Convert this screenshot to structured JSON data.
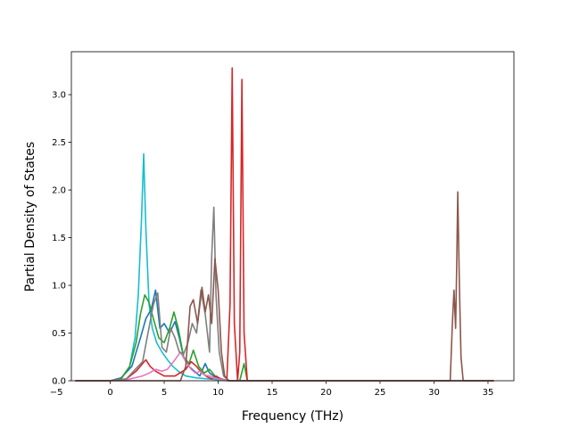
{
  "chart_data": {
    "type": "line",
    "title": "",
    "xlabel": "Frequency (THz)",
    "ylabel": "Partial Density of States",
    "xlim": [
      -3.6,
      37.4
    ],
    "ylim": [
      0.0,
      3.45
    ],
    "xticks": [
      -5,
      0,
      5,
      10,
      15,
      20,
      25,
      30,
      35
    ],
    "yticks": [
      0.0,
      0.5,
      1.0,
      1.5,
      2.0,
      2.5,
      3.0
    ],
    "xtick_labels": [
      "−5",
      "0",
      "5",
      "10",
      "15",
      "20",
      "25",
      "30",
      "35"
    ],
    "ytick_labels": [
      "0.0",
      "0.5",
      "1.0",
      "1.5",
      "2.0",
      "2.5",
      "3.0"
    ],
    "grid": false,
    "legend": "none",
    "series": [
      {
        "color": "#17becf",
        "x": [
          -3.2,
          0.0,
          1.0,
          1.8,
          2.3,
          2.6,
          2.9,
          3.1,
          3.3,
          3.6,
          3.9,
          4.3,
          4.8,
          5.3,
          5.8,
          6.3,
          7.0,
          8.0,
          9.0,
          10.0,
          11.0,
          12.5,
          35.5
        ],
        "y": [
          0.0,
          0.0,
          0.02,
          0.15,
          0.45,
          0.9,
          1.7,
          2.38,
          1.6,
          0.8,
          0.55,
          0.4,
          0.3,
          0.22,
          0.15,
          0.1,
          0.05,
          0.03,
          0.02,
          0.01,
          0.0,
          0.0,
          0.0
        ]
      },
      {
        "color": "#1f77b4",
        "x": [
          -3.2,
          0.0,
          1.0,
          2.0,
          2.8,
          3.3,
          3.8,
          4.2,
          4.6,
          5.0,
          5.5,
          6.0,
          6.4,
          6.8,
          7.3,
          7.8,
          8.3,
          8.8,
          9.2,
          9.6,
          10.0,
          10.5,
          11.2,
          12.5,
          35.5
        ],
        "y": [
          0.0,
          0.0,
          0.03,
          0.15,
          0.45,
          0.65,
          0.75,
          0.95,
          0.55,
          0.6,
          0.5,
          0.62,
          0.45,
          0.25,
          0.15,
          0.1,
          0.05,
          0.18,
          0.08,
          0.05,
          0.03,
          0.01,
          0.0,
          0.0,
          0.0
        ]
      },
      {
        "color": "#2ca02c",
        "x": [
          -3.2,
          0.0,
          1.0,
          1.8,
          2.4,
          2.8,
          3.2,
          3.6,
          4.0,
          4.5,
          5.0,
          5.5,
          5.9,
          6.3,
          6.8,
          7.3,
          7.7,
          8.2,
          8.7,
          9.2,
          9.7,
          10.3,
          11.0,
          12.0,
          12.4,
          12.7,
          35.5
        ],
        "y": [
          0.0,
          0.0,
          0.02,
          0.15,
          0.4,
          0.7,
          0.9,
          0.82,
          0.65,
          0.45,
          0.4,
          0.55,
          0.72,
          0.55,
          0.25,
          0.18,
          0.32,
          0.15,
          0.08,
          0.12,
          0.05,
          0.02,
          0.0,
          0.0,
          0.18,
          0.0,
          0.0
        ]
      },
      {
        "color": "#d62728",
        "x": [
          -3.2,
          0.0,
          1.5,
          2.4,
          3.0,
          3.3,
          3.7,
          4.2,
          5.0,
          6.0,
          7.0,
          7.5,
          8.0,
          8.5,
          9.0,
          9.4,
          9.8,
          10.2,
          10.8,
          11.1,
          11.3,
          11.5,
          11.8,
          12.0,
          12.2,
          12.4,
          12.7,
          13.5,
          35.5
        ],
        "y": [
          0.0,
          0.0,
          0.02,
          0.1,
          0.18,
          0.22,
          0.15,
          0.1,
          0.05,
          0.05,
          0.12,
          0.2,
          0.15,
          0.08,
          0.04,
          0.02,
          0.05,
          0.02,
          0.0,
          0.8,
          3.28,
          0.6,
          0.0,
          0.3,
          3.16,
          0.5,
          0.0,
          0.0,
          0.0
        ]
      },
      {
        "color": "#e377c2",
        "x": [
          -3.2,
          0.0,
          1.5,
          3.0,
          3.6,
          4.2,
          4.8,
          5.3,
          6.0,
          6.5,
          7.0,
          7.5,
          7.9,
          8.3,
          8.7,
          9.2,
          9.6,
          10.0,
          10.5,
          11.0,
          35.5
        ],
        "y": [
          0.0,
          0.0,
          0.01,
          0.05,
          0.08,
          0.12,
          0.1,
          0.12,
          0.22,
          0.3,
          0.2,
          0.12,
          0.08,
          0.1,
          0.06,
          0.05,
          0.03,
          0.02,
          0.01,
          0.0,
          0.0
        ]
      },
      {
        "color": "#7f7f7f",
        "x": [
          -3.2,
          0.0,
          1.5,
          3.0,
          3.5,
          4.0,
          4.4,
          4.8,
          5.2,
          5.6,
          6.0,
          6.4,
          6.8,
          7.2,
          7.6,
          8.0,
          8.4,
          8.8,
          9.2,
          9.4,
          9.6,
          9.8,
          10.1,
          10.5,
          11.0,
          35.5
        ],
        "y": [
          0.0,
          0.0,
          0.02,
          0.2,
          0.5,
          0.8,
          0.92,
          0.35,
          0.3,
          0.55,
          0.45,
          0.3,
          0.28,
          0.4,
          0.6,
          0.5,
          0.95,
          0.7,
          0.3,
          1.3,
          1.82,
          0.9,
          0.3,
          0.05,
          0.0,
          0.0
        ]
      },
      {
        "color": "#8c564b",
        "x": [
          -3.2,
          6.5,
          7.0,
          7.4,
          7.7,
          8.1,
          8.5,
          8.8,
          9.1,
          9.4,
          9.7,
          10.0,
          10.3,
          10.6,
          11.0,
          31.5,
          31.7,
          31.85,
          32.0,
          32.1,
          32.2,
          32.35,
          32.5,
          32.7,
          35.5
        ],
        "y": [
          0.0,
          0.0,
          0.15,
          0.78,
          0.85,
          0.6,
          0.98,
          0.72,
          0.9,
          0.6,
          1.28,
          0.95,
          0.3,
          0.05,
          0.0,
          0.0,
          0.6,
          0.95,
          0.55,
          1.2,
          1.98,
          1.0,
          0.25,
          0.0,
          0.0
        ]
      }
    ]
  }
}
